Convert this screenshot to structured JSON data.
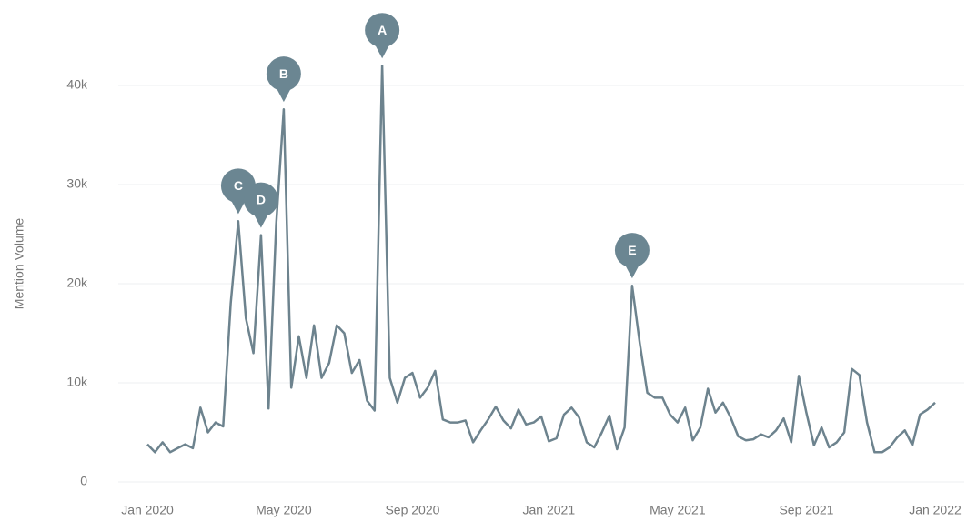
{
  "chart_data": {
    "type": "line",
    "y_label": "Mention Volume",
    "categories": [
      "Jan 2020",
      null,
      null,
      null,
      null,
      null,
      null,
      null,
      null,
      null,
      null,
      null,
      null,
      null,
      null,
      null,
      null,
      null,
      "May 2020",
      null,
      null,
      null,
      null,
      null,
      null,
      null,
      null,
      null,
      null,
      null,
      null,
      null,
      null,
      null,
      null,
      "Sep 2020",
      null,
      null,
      null,
      null,
      null,
      null,
      null,
      null,
      null,
      null,
      null,
      null,
      null,
      null,
      null,
      null,
      null,
      "Jan 2021",
      null,
      null,
      null,
      null,
      null,
      null,
      null,
      null,
      null,
      null,
      null,
      null,
      null,
      null,
      null,
      null,
      "May 2021",
      null,
      null,
      null,
      null,
      null,
      null,
      null,
      null,
      null,
      null,
      null,
      null,
      null,
      null,
      null,
      null,
      "Sep 2021",
      null,
      null,
      null,
      null,
      null,
      null,
      null,
      null,
      null,
      null,
      null,
      null,
      null,
      null,
      null,
      null,
      "Jan 2022"
    ],
    "series": [
      {
        "name": "Mention Volume",
        "color": "#6d838e",
        "values": [
          3800,
          3000,
          4000,
          3000,
          3400,
          3800,
          3400,
          7500,
          5000,
          6000,
          5600,
          18000,
          26300,
          16500,
          13000,
          24900,
          7400,
          26000,
          37600,
          9500,
          14700,
          10500,
          15800,
          10500,
          12000,
          15800,
          15000,
          11000,
          12300,
          8200,
          7200,
          42000,
          10500,
          8000,
          10500,
          11000,
          8500,
          9500,
          11200,
          6300,
          6000,
          6000,
          6200,
          4000,
          5200,
          6300,
          7600,
          6200,
          5400,
          7300,
          5800,
          6000,
          6600,
          4100,
          4400,
          6800,
          7500,
          6500,
          4000,
          3500,
          5000,
          6700,
          3300,
          5500,
          19800,
          14000,
          9000,
          8500,
          8500,
          6800,
          6000,
          7500,
          4200,
          5500,
          9400,
          7000,
          8000,
          6500,
          4600,
          4200,
          4300,
          4800,
          4500,
          5200,
          6400,
          4000,
          10700,
          7000,
          3700,
          5500,
          3500,
          4000,
          5000,
          11400,
          10800,
          6000,
          3000,
          3000,
          3500,
          4500,
          5200,
          3700,
          6800,
          7300,
          8000
        ]
      }
    ],
    "annotations": [
      {
        "text": "A",
        "point": 31
      },
      {
        "text": "B",
        "point": 18
      },
      {
        "text": "C",
        "point": 12
      },
      {
        "text": "D",
        "point": 15
      },
      {
        "text": "E",
        "point": 64
      }
    ],
    "ylim": [
      0,
      45000
    ],
    "yticks": [
      {
        "value": 0,
        "label": "0"
      },
      {
        "value": 10000,
        "label": "10k"
      },
      {
        "value": 20000,
        "label": "20k"
      },
      {
        "value": 30000,
        "label": "30k"
      },
      {
        "value": 40000,
        "label": "40k"
      }
    ],
    "grid": true,
    "marker_color": "#6b8692"
  }
}
